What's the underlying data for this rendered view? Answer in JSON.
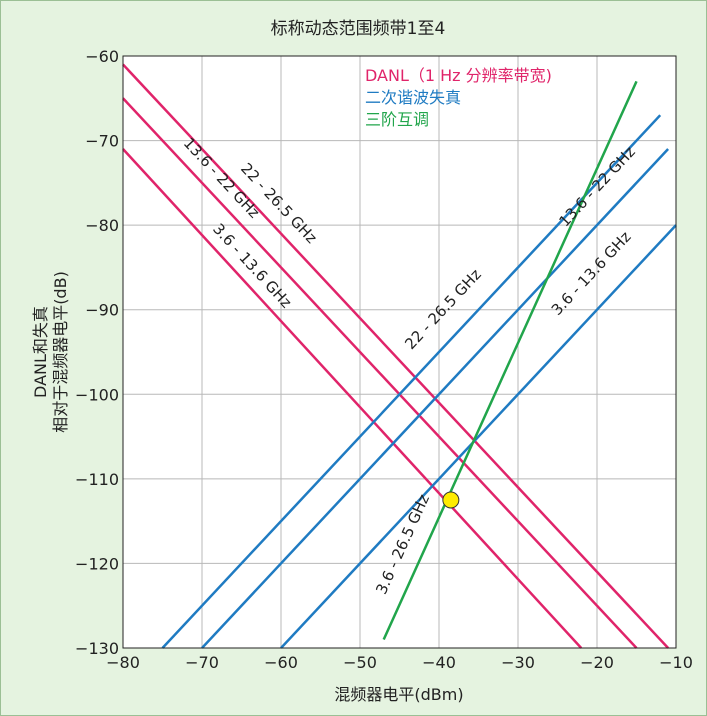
{
  "chart_data": {
    "type": "line",
    "title": "标称动态范围频带1至4",
    "xlabel": "混频器电平(dBm)",
    "ylabel": [
      "DANL和失真",
      "相对于混频器电平(dB)"
    ],
    "xlim": [
      -80,
      -10
    ],
    "ylim": [
      -130,
      -60
    ],
    "xticks": [
      -80,
      -70,
      -60,
      -50,
      -40,
      -30,
      -20,
      -10
    ],
    "yticks": [
      -60,
      -70,
      -80,
      -90,
      -100,
      -110,
      -120,
      -130
    ],
    "xtick_labels": [
      "−80",
      "−70",
      "−60",
      "−50",
      "−40",
      "−30",
      "−20",
      "−10"
    ],
    "ytick_labels": [
      "−60",
      "−70",
      "−80",
      "−90",
      "−100",
      "−110",
      "−120",
      "−130"
    ],
    "grid": true,
    "legend": {
      "placement": "top-right",
      "entries": [
        {
          "name": "DANL（1 Hz 分辨率带宽)",
          "color": "#e0246a"
        },
        {
          "name": "二次谐波失真",
          "color": "#1f7bc2"
        },
        {
          "name": "三阶互调",
          "color": "#21a54b"
        }
      ]
    },
    "series": [
      {
        "group": "danl",
        "label": "22 - 26.5 GHz",
        "color": "#e0246a",
        "x": [
          -80,
          -11
        ],
        "y": [
          -61,
          -130
        ]
      },
      {
        "group": "danl",
        "label": "13.6 - 22 GHz",
        "color": "#e0246a",
        "x": [
          -80,
          -15
        ],
        "y": [
          -65,
          -130
        ]
      },
      {
        "group": "danl",
        "label": "3.6 - 13.6 GHz",
        "color": "#e0246a",
        "x": [
          -80,
          -22
        ],
        "y": [
          -71,
          -130
        ]
      },
      {
        "group": "shd",
        "label": "22 - 26.5 GHz",
        "color": "#1f7bc2",
        "x": [
          -75,
          -12
        ],
        "y": [
          -130,
          -67
        ]
      },
      {
        "group": "shd",
        "label": "13.6 - 22 GHz",
        "color": "#1f7bc2",
        "x": [
          -70,
          -11
        ],
        "y": [
          -130,
          -71
        ]
      },
      {
        "group": "shd",
        "label": "3.6 - 13.6 GHz",
        "color": "#1f7bc2",
        "x": [
          -60,
          -10
        ],
        "y": [
          -130,
          -80
        ]
      },
      {
        "group": "toi",
        "label": "3.6 - 26.5 GHz",
        "color": "#21a54b",
        "x": [
          -47,
          -15
        ],
        "y": [
          -129,
          -63
        ]
      }
    ],
    "marker": {
      "x": -38.5,
      "y": -112.5,
      "color": "#ffeb00"
    }
  }
}
